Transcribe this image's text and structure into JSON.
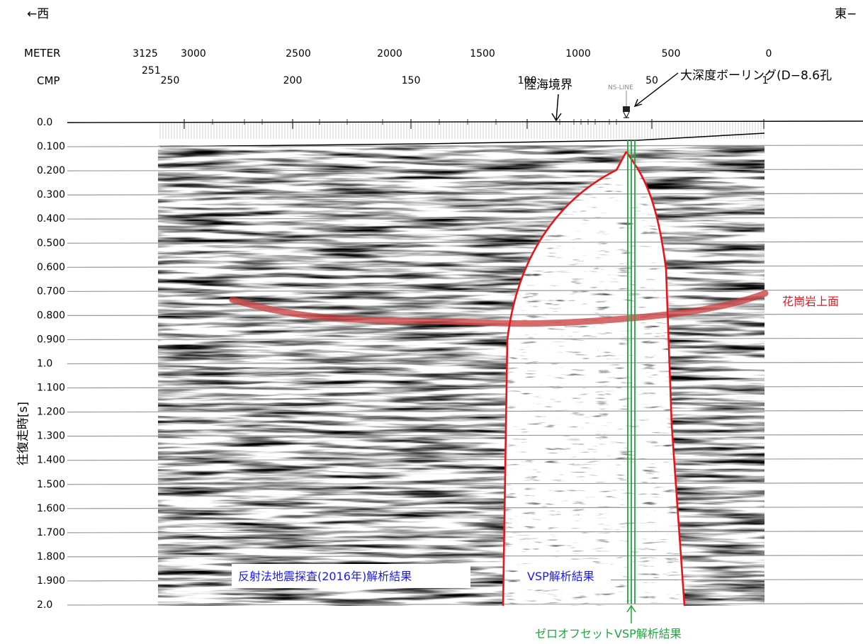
{
  "direction": {
    "west": "←西",
    "east": "東−"
  },
  "meter_axis": {
    "label": "METER",
    "ticks": [
      "3125",
      "3000",
      "2500",
      "2000",
      "1500",
      "1000",
      "500",
      "0"
    ]
  },
  "cmp_axis": {
    "label": "CMP",
    "first_cmp": "251",
    "ticks": [
      "250",
      "200",
      "150",
      "100",
      "50",
      "1"
    ]
  },
  "y_axis": {
    "label": "往復走時[s]",
    "ticks": [
      "0.0",
      "0.100",
      "0.200",
      "0.300",
      "0.400",
      "0.500",
      "0.600",
      "0.700",
      "0.800",
      "0.900",
      "1.0",
      "1.100",
      "1.200",
      "1.300",
      "1.400",
      "1.500",
      "1.600",
      "1.700",
      "1.800",
      "1.900",
      "2.0"
    ]
  },
  "annotations": {
    "coastline": "陸海境界",
    "borehole": "大深度ボーリング(D−8.6孔",
    "ns_line": "NS-LINE",
    "granite_top": "花崗岩上面",
    "reflection_result": "反射法地震探査(2016年)解析結果",
    "vsp_result": "VSP解析結果",
    "zero_offset_result": "ゼロオフセットVSP解析結果"
  },
  "colors": {
    "granite_line": "#cc2a2a",
    "vsp_outline": "#e8141c",
    "zero_offset": "#1fa53c",
    "label_blue": "#1a1ae6",
    "label_green": "#1fa53c",
    "label_red": "#e8141c"
  }
}
